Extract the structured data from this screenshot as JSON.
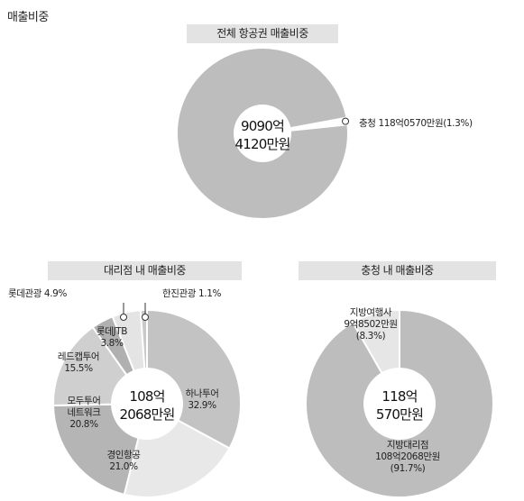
{
  "page_title": "매출비중",
  "chart_data": [
    {
      "type": "pie",
      "title": "전체 항공권 매출비중",
      "center_label": [
        "9090억",
        "4120만원"
      ],
      "slices": [
        {
          "label": "충청 118억0570만원(1.3%)",
          "value": 1.3,
          "color": "#ffffff"
        },
        {
          "label": "",
          "value": 98.7,
          "color": "#bdbdbd"
        }
      ]
    },
    {
      "type": "pie",
      "title": "대리점 내 매출비중",
      "center_label": [
        "108억",
        "2068만원"
      ],
      "slices": [
        {
          "label": [
            "하나투어",
            "32.9%"
          ],
          "value": 32.9,
          "color": "#c3c3c3"
        },
        {
          "label": [
            "경인항공",
            "21.0%"
          ],
          "value": 21.0,
          "color": "#e8e8e8"
        },
        {
          "label": [
            "모두투어",
            "네트워크",
            "20.8%"
          ],
          "value": 20.8,
          "color": "#b5b5b5"
        },
        {
          "label": [
            "레드캡투어",
            "15.5%"
          ],
          "value": 15.5,
          "color": "#cfcfcf"
        },
        {
          "label": [
            "롯데JTB",
            "3.8%"
          ],
          "value": 3.8,
          "color": "#b0b0b0"
        },
        {
          "label": "롯데관광 4.9%",
          "value": 4.9,
          "color": "#e4e4e4"
        },
        {
          "label": "한진관광 1.1%",
          "value": 1.1,
          "color": "#c9c9c9"
        }
      ]
    },
    {
      "type": "pie",
      "title": "충청 내 매출비중",
      "center_label": [
        "118억",
        "570만원"
      ],
      "slices": [
        {
          "label": [
            "지방대리점",
            "108억2068만원",
            "(91.7%)"
          ],
          "value": 91.7,
          "color": "#bdbdbd"
        },
        {
          "label": [
            "지방여행사",
            "9억8502만원",
            "(8.3%)"
          ],
          "value": 8.3,
          "color": "#e6e6e6"
        }
      ]
    }
  ]
}
